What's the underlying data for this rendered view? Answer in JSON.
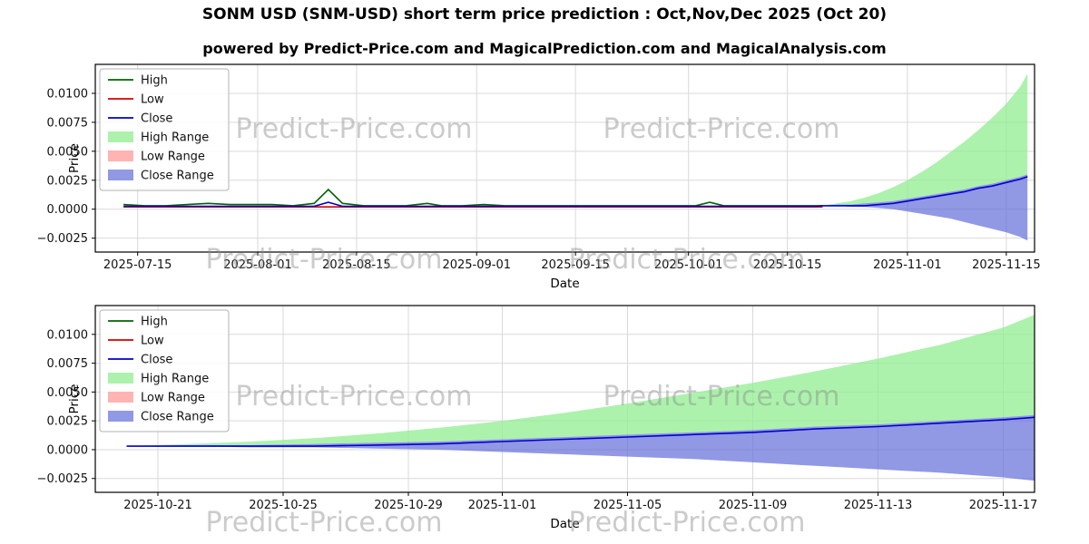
{
  "figure": {
    "title": "SONM USD (SNM-USD) short term price prediction : Oct,Nov,Dec 2025 (Oct 20)",
    "subtitle": "powered by Predict-Price.com and MagicalPrediction.com and MagicalAnalysis.com",
    "watermark": "Predict-Price.com",
    "background": "#ffffff"
  },
  "colors": {
    "high": "#006400",
    "low": "#d40000",
    "close": "#0000cd",
    "high_range": "rgba(144,238,144,0.75)",
    "low_range": "rgba(255,160,160,0.8)",
    "close_range": "rgba(98,108,217,0.7)",
    "grid": "#d9d9d9",
    "watermark": "#8c8c8c"
  },
  "chart_data": [
    {
      "name": "price-history-with-forecast",
      "type": "line",
      "xlabel": "Date",
      "ylabel": "Price",
      "xlim": [
        "2025-07-09",
        "2025-11-19"
      ],
      "ylim": [
        -0.0037,
        0.0125
      ],
      "xticks": [
        "2025-07-15",
        "2025-08-01",
        "2025-08-15",
        "2025-09-01",
        "2025-09-15",
        "2025-10-01",
        "2025-10-15",
        "2025-11-01",
        "2025-11-15"
      ],
      "yticks": [
        -0.0025,
        0,
        0.0025,
        0.005,
        0.0075,
        0.01
      ],
      "grid": true,
      "legend_position": "upper-left",
      "legend": [
        {
          "label": "High",
          "kind": "line",
          "color": "high"
        },
        {
          "label": "Low",
          "kind": "line",
          "color": "low"
        },
        {
          "label": "Close",
          "kind": "line",
          "color": "close"
        },
        {
          "label": "High Range",
          "kind": "patch",
          "color": "high_range"
        },
        {
          "label": "Low Range",
          "kind": "patch",
          "color": "low_range"
        },
        {
          "label": "Close Range",
          "kind": "patch",
          "color": "close_range"
        }
      ],
      "series": [
        {
          "name": "High",
          "color": "high",
          "x": [
            "2025-07-13",
            "2025-07-16",
            "2025-07-19",
            "2025-07-22",
            "2025-07-25",
            "2025-07-28",
            "2025-07-31",
            "2025-08-03",
            "2025-08-06",
            "2025-08-09",
            "2025-08-11",
            "2025-08-13",
            "2025-08-16",
            "2025-08-19",
            "2025-08-22",
            "2025-08-25",
            "2025-08-27",
            "2025-08-30",
            "2025-09-02",
            "2025-09-05",
            "2025-09-08",
            "2025-09-11",
            "2025-09-14",
            "2025-09-17",
            "2025-09-20",
            "2025-09-23",
            "2025-09-26",
            "2025-09-29",
            "2025-10-02",
            "2025-10-04",
            "2025-10-06",
            "2025-10-09",
            "2025-10-12",
            "2025-10-15",
            "2025-10-17",
            "2025-10-18",
            "2025-10-19",
            "2025-10-20"
          ],
          "y": [
            0.0004,
            0.0003,
            0.0003,
            0.0004,
            0.0005,
            0.0004,
            0.0004,
            0.0004,
            0.0003,
            0.0005,
            0.0017,
            0.0005,
            0.0003,
            0.0003,
            0.0003,
            0.0005,
            0.0003,
            0.0003,
            0.0004,
            0.0003,
            0.0003,
            0.0003,
            0.0003,
            0.0003,
            0.0003,
            0.0003,
            0.0003,
            0.0003,
            0.0003,
            0.0006,
            0.0003,
            0.0003,
            0.0003,
            0.0003,
            0.0003,
            0.0003,
            0.0003,
            0.0003
          ]
        },
        {
          "name": "Low",
          "color": "low",
          "x": [
            "2025-07-13",
            "2025-07-16",
            "2025-07-19",
            "2025-07-22",
            "2025-07-25",
            "2025-07-28",
            "2025-07-31",
            "2025-08-03",
            "2025-08-06",
            "2025-08-09",
            "2025-08-11",
            "2025-08-13",
            "2025-08-16",
            "2025-08-19",
            "2025-08-22",
            "2025-08-25",
            "2025-08-27",
            "2025-08-30",
            "2025-09-02",
            "2025-09-05",
            "2025-09-08",
            "2025-09-11",
            "2025-09-14",
            "2025-09-17",
            "2025-09-20",
            "2025-09-23",
            "2025-09-26",
            "2025-09-29",
            "2025-10-02",
            "2025-10-04",
            "2025-10-06",
            "2025-10-09",
            "2025-10-12",
            "2025-10-15",
            "2025-10-17",
            "2025-10-18",
            "2025-10-19",
            "2025-10-20"
          ],
          "y": [
            0.0002,
            0.0002,
            0.0002,
            0.0002,
            0.0002,
            0.0002,
            0.0002,
            0.0002,
            0.0002,
            0.0002,
            0.0002,
            0.0002,
            0.0002,
            0.0002,
            0.0002,
            0.0002,
            0.0002,
            0.0002,
            0.0002,
            0.0002,
            0.0002,
            0.0002,
            0.0002,
            0.0002,
            0.0002,
            0.0002,
            0.0002,
            0.0002,
            0.0002,
            0.0002,
            0.0002,
            0.0002,
            0.0002,
            0.0002,
            0.0002,
            0.0002,
            0.0002,
            0.0002
          ]
        },
        {
          "name": "Close",
          "color": "close",
          "x": [
            "2025-07-13",
            "2025-07-16",
            "2025-07-19",
            "2025-07-22",
            "2025-07-25",
            "2025-07-28",
            "2025-07-31",
            "2025-08-03",
            "2025-08-06",
            "2025-08-09",
            "2025-08-11",
            "2025-08-13",
            "2025-08-16",
            "2025-08-19",
            "2025-08-22",
            "2025-08-25",
            "2025-08-27",
            "2025-08-30",
            "2025-09-02",
            "2025-09-05",
            "2025-09-08",
            "2025-09-11",
            "2025-09-14",
            "2025-09-17",
            "2025-09-20",
            "2025-09-23",
            "2025-09-26",
            "2025-09-29",
            "2025-10-02",
            "2025-10-04",
            "2025-10-06",
            "2025-10-09",
            "2025-10-12",
            "2025-10-15",
            "2025-10-17",
            "2025-10-18",
            "2025-10-19",
            "2025-10-20",
            "2025-10-22",
            "2025-10-24",
            "2025-10-26",
            "2025-10-28",
            "2025-10-30",
            "2025-11-01",
            "2025-11-03",
            "2025-11-05",
            "2025-11-07",
            "2025-11-09",
            "2025-11-11",
            "2025-11-13",
            "2025-11-15",
            "2025-11-17",
            "2025-11-18"
          ],
          "y": [
            0.00025,
            0.00025,
            0.00025,
            0.00025,
            0.00025,
            0.00025,
            0.00025,
            0.00025,
            0.00025,
            0.00025,
            0.0006,
            0.00025,
            0.00025,
            0.00025,
            0.00025,
            0.00025,
            0.00025,
            0.00025,
            0.00025,
            0.00025,
            0.00025,
            0.00025,
            0.00025,
            0.00025,
            0.00025,
            0.00025,
            0.00025,
            0.00025,
            0.00025,
            0.00025,
            0.00025,
            0.00025,
            0.00025,
            0.00025,
            0.00025,
            0.00025,
            0.00025,
            0.0003,
            0.0003,
            0.0003,
            0.0003,
            0.0004,
            0.0005,
            0.0007,
            0.0009,
            0.0011,
            0.0013,
            0.0015,
            0.0018,
            0.002,
            0.0023,
            0.0026,
            0.0028
          ]
        }
      ],
      "bands": [
        {
          "name": "High Range",
          "color": "high_range",
          "x": [
            "2025-10-20",
            "2025-10-22",
            "2025-10-24",
            "2025-10-26",
            "2025-10-28",
            "2025-10-30",
            "2025-11-01",
            "2025-11-03",
            "2025-11-05",
            "2025-11-07",
            "2025-11-09",
            "2025-11-11",
            "2025-11-13",
            "2025-11-15",
            "2025-11-17",
            "2025-11-18"
          ],
          "upper": [
            0.0003,
            0.0005,
            0.0007,
            0.001,
            0.0014,
            0.0019,
            0.0025,
            0.0032,
            0.004,
            0.0049,
            0.0058,
            0.0068,
            0.0079,
            0.0091,
            0.0106,
            0.0117
          ],
          "lower": [
            0.0003,
            0.0004,
            0.0004,
            0.0005,
            0.0006,
            0.0007,
            0.0009,
            0.0011,
            0.0013,
            0.0015,
            0.0017,
            0.002,
            0.0022,
            0.0025,
            0.0028,
            0.003
          ]
        },
        {
          "name": "Close Range",
          "color": "close_range",
          "x": [
            "2025-10-20",
            "2025-10-22",
            "2025-10-24",
            "2025-10-26",
            "2025-10-28",
            "2025-10-30",
            "2025-11-01",
            "2025-11-03",
            "2025-11-05",
            "2025-11-07",
            "2025-11-09",
            "2025-11-11",
            "2025-11-13",
            "2025-11-15",
            "2025-11-17",
            "2025-11-18"
          ],
          "upper": [
            0.0003,
            0.0004,
            0.0004,
            0.0005,
            0.0006,
            0.0007,
            0.0009,
            0.0011,
            0.0013,
            0.0015,
            0.0017,
            0.002,
            0.0022,
            0.0025,
            0.0028,
            0.003
          ],
          "lower": [
            0.0003,
            0.0003,
            0.0002,
            0.0002,
            0.0001,
            0,
            -0.0002,
            -0.0004,
            -0.0006,
            -0.0008,
            -0.0011,
            -0.0014,
            -0.0017,
            -0.002,
            -0.0024,
            -0.0027
          ]
        }
      ]
    },
    {
      "name": "forecast-zoom",
      "type": "line",
      "xlabel": "Date",
      "ylabel": "Price",
      "xlim": [
        "2025-10-19",
        "2025-11-18"
      ],
      "ylim": [
        -0.0037,
        0.0125
      ],
      "xticks": [
        "2025-10-21",
        "2025-10-25",
        "2025-10-29",
        "2025-11-01",
        "2025-11-05",
        "2025-11-09",
        "2025-11-13",
        "2025-11-17"
      ],
      "yticks": [
        -0.0025,
        0,
        0.0025,
        0.005,
        0.0075,
        0.01
      ],
      "grid": true,
      "legend_position": "upper-left",
      "legend": [
        {
          "label": "High",
          "kind": "line",
          "color": "high"
        },
        {
          "label": "Low",
          "kind": "line",
          "color": "low"
        },
        {
          "label": "Close",
          "kind": "line",
          "color": "close"
        },
        {
          "label": "High Range",
          "kind": "patch",
          "color": "high_range"
        },
        {
          "label": "Low Range",
          "kind": "patch",
          "color": "low_range"
        },
        {
          "label": "Close Range",
          "kind": "patch",
          "color": "close_range"
        }
      ],
      "series": [
        {
          "name": "Close",
          "color": "close",
          "x": [
            "2025-10-20",
            "2025-10-22",
            "2025-10-24",
            "2025-10-26",
            "2025-10-28",
            "2025-10-30",
            "2025-11-01",
            "2025-11-03",
            "2025-11-05",
            "2025-11-07",
            "2025-11-09",
            "2025-11-11",
            "2025-11-13",
            "2025-11-15",
            "2025-11-17",
            "2025-11-18"
          ],
          "y": [
            0.0003,
            0.0003,
            0.0003,
            0.0003,
            0.0004,
            0.0005,
            0.0007,
            0.0009,
            0.0011,
            0.0013,
            0.0015,
            0.0018,
            0.002,
            0.0023,
            0.0026,
            0.0028
          ]
        }
      ],
      "bands": [
        {
          "name": "High Range",
          "color": "high_range",
          "x": [
            "2025-10-20",
            "2025-10-22",
            "2025-10-24",
            "2025-10-26",
            "2025-10-28",
            "2025-10-30",
            "2025-11-01",
            "2025-11-03",
            "2025-11-05",
            "2025-11-07",
            "2025-11-09",
            "2025-11-11",
            "2025-11-13",
            "2025-11-15",
            "2025-11-17",
            "2025-11-18"
          ],
          "upper": [
            0.0003,
            0.0005,
            0.0007,
            0.001,
            0.0014,
            0.0019,
            0.0025,
            0.0032,
            0.004,
            0.0049,
            0.0058,
            0.0068,
            0.0079,
            0.0091,
            0.0106,
            0.0117
          ],
          "lower": [
            0.0003,
            0.0004,
            0.0004,
            0.0005,
            0.0006,
            0.0007,
            0.0009,
            0.0011,
            0.0013,
            0.0015,
            0.0017,
            0.002,
            0.0022,
            0.0025,
            0.0028,
            0.003
          ]
        },
        {
          "name": "Close Range",
          "color": "close_range",
          "x": [
            "2025-10-20",
            "2025-10-22",
            "2025-10-24",
            "2025-10-26",
            "2025-10-28",
            "2025-10-30",
            "2025-11-01",
            "2025-11-03",
            "2025-11-05",
            "2025-11-07",
            "2025-11-09",
            "2025-11-11",
            "2025-11-13",
            "2025-11-15",
            "2025-11-17",
            "2025-11-18"
          ],
          "upper": [
            0.0003,
            0.0004,
            0.0004,
            0.0005,
            0.0006,
            0.0007,
            0.0009,
            0.0011,
            0.0013,
            0.0015,
            0.0017,
            0.002,
            0.0022,
            0.0025,
            0.0028,
            0.003
          ],
          "lower": [
            0.0003,
            0.0003,
            0.0002,
            0.0002,
            0.0001,
            0,
            -0.0002,
            -0.0004,
            -0.0006,
            -0.0008,
            -0.0011,
            -0.0014,
            -0.0017,
            -0.002,
            -0.0024,
            -0.0027
          ]
        }
      ]
    }
  ]
}
